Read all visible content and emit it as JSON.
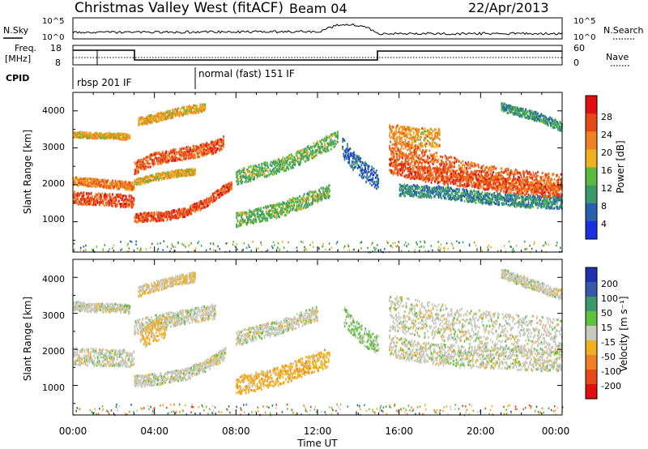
{
  "header": {
    "station": "Christmas Valley West (fitACF)",
    "beam": "Beam 04",
    "date": "22/Apr/2013"
  },
  "nsky": {
    "label": "N.Sky",
    "ticks_left": [
      "10^5",
      "10^0"
    ],
    "right_label": "N.Search",
    "ticks_right": [
      "10^5",
      "10^0"
    ]
  },
  "freq": {
    "label_line1": "Freq.",
    "label_line2": "[MHz]",
    "ticks_left": [
      "18",
      "8"
    ],
    "right_label": "Nave",
    "ticks_right": [
      "60",
      "0"
    ]
  },
  "cpid": {
    "label": "CPID",
    "segments": [
      {
        "text": "rbsp 201 IF",
        "start_hour": 0
      },
      {
        "text": "normal (fast) 151 IF",
        "start_hour": 6
      }
    ]
  },
  "time_axis": {
    "xlabel": "Time UT",
    "ticks": [
      "00:00",
      "04:00",
      "08:00",
      "12:00",
      "16:00",
      "20:00",
      "00:00"
    ]
  },
  "range_axis": {
    "ylabel": "Slant Range [km]",
    "ticks": [
      "1000",
      "2000",
      "3000",
      "4000"
    ]
  },
  "power_scale": {
    "title": "Power [dB]",
    "ticks": [
      "4",
      "8",
      "12",
      "16",
      "20",
      "24",
      "28"
    ],
    "colors": [
      "#1830e0",
      "#2860b0",
      "#3a9a6a",
      "#5aba40",
      "#f0b020",
      "#f08020",
      "#e84818",
      "#e01010"
    ]
  },
  "velocity_scale": {
    "title": "Velocity [m s⁻¹]",
    "ticks": [
      "200",
      "100",
      "50",
      "15",
      "-15",
      "-50",
      "-100",
      "-200"
    ],
    "colors": [
      "#2030b0",
      "#3858a8",
      "#3a9a6a",
      "#60c040",
      "#c8c8c0",
      "#f0b020",
      "#f08020",
      "#e84818",
      "#e01010"
    ]
  },
  "chart_data": [
    {
      "type": "heatmap",
      "title": "Power [dB]",
      "xlabel": "Time UT",
      "ylabel": "Slant Range [km]",
      "xlim": [
        0,
        24
      ],
      "ylim": [
        180,
        4500
      ],
      "cbar_range": [
        0,
        32
      ],
      "bands": [
        {
          "points": [
            [
              0,
              1650
            ],
            [
              1,
              1600
            ],
            [
              2,
              1580
            ],
            [
              3,
              1550
            ]
          ],
          "width": 170,
          "value": 26
        },
        {
          "points": [
            [
              0,
              2100
            ],
            [
              1,
              2050
            ],
            [
              2,
              2000
            ],
            [
              3,
              1950
            ]
          ],
          "width": 110,
          "value": 23
        },
        {
          "points": [
            [
              0,
              3350
            ],
            [
              1,
              3330
            ],
            [
              2,
              3320
            ],
            [
              2.8,
              3280
            ]
          ],
          "width": 80,
          "value": 19
        },
        {
          "points": [
            [
              3,
              1100
            ],
            [
              4.5,
              1150
            ],
            [
              5.5,
              1250
            ],
            [
              6.5,
              1500
            ],
            [
              7.2,
              1800
            ],
            [
              7.8,
              2000
            ]
          ],
          "width": 120,
          "value": 26
        },
        {
          "points": [
            [
              3,
              2450
            ],
            [
              4,
              2700
            ],
            [
              5,
              2800
            ],
            [
              6,
              2900
            ],
            [
              6.8,
              3000
            ],
            [
              7.4,
              3150
            ]
          ],
          "width": 170,
          "value": 25
        },
        {
          "points": [
            [
              3,
              2050
            ],
            [
              4,
              2200
            ],
            [
              5,
              2300
            ],
            [
              6,
              2350
            ]
          ],
          "width": 90,
          "value": 19
        },
        {
          "points": [
            [
              3.2,
              3700
            ],
            [
              4,
              3800
            ],
            [
              5,
              3950
            ],
            [
              6,
              4050
            ],
            [
              6.5,
              4100
            ]
          ],
          "width": 110,
          "value": 19
        },
        {
          "points": [
            [
              8,
              2200
            ],
            [
              9,
              2350
            ],
            [
              10,
              2500
            ],
            [
              11,
              2700
            ],
            [
              12,
              3000
            ],
            [
              13,
              3250
            ]
          ],
          "width": 200,
          "value": 13
        },
        {
          "points": [
            [
              8,
              1050
            ],
            [
              9,
              1150
            ],
            [
              10,
              1300
            ],
            [
              11,
              1500
            ],
            [
              12,
              1700
            ],
            [
              12.6,
              1850
            ]
          ],
          "width": 200,
          "value": 13
        },
        {
          "points": [
            [
              13.2,
              3000
            ],
            [
              13.8,
              2600
            ],
            [
              14.4,
              2300
            ],
            [
              15,
              2100
            ]
          ],
          "width": 260,
          "value": 6
        },
        {
          "points": [
            [
              15.5,
              2800
            ],
            [
              16,
              2900
            ],
            [
              17,
              2750
            ],
            [
              18,
              2550
            ],
            [
              19,
              2400
            ],
            [
              20,
              2250
            ],
            [
              21,
              2200
            ],
            [
              22,
              2100
            ],
            [
              23,
              2050
            ],
            [
              24,
              2000
            ]
          ],
          "width": 280,
          "value": 24
        },
        {
          "points": [
            [
              15.5,
              2500
            ],
            [
              17,
              2300
            ],
            [
              19,
              2150
            ],
            [
              21,
              2000
            ],
            [
              23,
              1850
            ],
            [
              24,
              1800
            ]
          ],
          "width": 200,
          "value": 25
        },
        {
          "points": [
            [
              16,
              1850
            ],
            [
              18,
              1800
            ],
            [
              20,
              1650
            ],
            [
              22,
              1550
            ],
            [
              24,
              1500
            ]
          ],
          "width": 160,
          "value": 9
        },
        {
          "points": [
            [
              21,
              4100
            ],
            [
              22,
              3950
            ],
            [
              23,
              3800
            ],
            [
              24,
              3550
            ]
          ],
          "width": 120,
          "value": 10
        },
        {
          "points": [
            [
              15.5,
              3400
            ],
            [
              16.5,
              3300
            ],
            [
              18,
              3250
            ]
          ],
          "width": 260,
          "value": 20
        }
      ]
    },
    {
      "type": "heatmap",
      "title": "Velocity [m s⁻¹]",
      "xlabel": "Time UT",
      "ylabel": "Slant Range [km]",
      "xlim": [
        0,
        24
      ],
      "ylim": [
        180,
        4500
      ],
      "cbar_range": [
        -200,
        200
      ],
      "bands": [
        {
          "points": [
            [
              0,
              1800
            ],
            [
              1,
              1780
            ],
            [
              2,
              1760
            ],
            [
              3,
              1740
            ]
          ],
          "width": 240,
          "value": 0
        },
        {
          "points": [
            [
              0,
              3200
            ],
            [
              1,
              3150
            ],
            [
              2,
              3150
            ],
            [
              2.8,
              3100
            ]
          ],
          "width": 120,
          "value": 0
        },
        {
          "points": [
            [
              3,
              1100
            ],
            [
              4.5,
              1200
            ],
            [
              5.5,
              1300
            ],
            [
              6.5,
              1550
            ],
            [
              7.5,
              1900
            ]
          ],
          "width": 160,
          "value": 0
        },
        {
          "points": [
            [
              3,
              2600
            ],
            [
              4,
              2750
            ],
            [
              5,
              2850
            ],
            [
              6,
              2950
            ],
            [
              7,
              3050
            ]
          ],
          "width": 200,
          "value": 0
        },
        {
          "points": [
            [
              3.3,
              2300
            ],
            [
              4,
              2500
            ],
            [
              4.6,
              2650
            ]
          ],
          "width": 300,
          "value": -40
        },
        {
          "points": [
            [
              3.2,
              3600
            ],
            [
              4,
              3750
            ],
            [
              5,
              3900
            ],
            [
              6,
              4000
            ]
          ],
          "width": 140,
          "value": -20
        },
        {
          "points": [
            [
              8,
              2300
            ],
            [
              9,
              2450
            ],
            [
              10,
              2600
            ],
            [
              11,
              2800
            ],
            [
              12,
              3000
            ]
          ],
          "width": 200,
          "value": 0
        },
        {
          "points": [
            [
              8,
              1000
            ],
            [
              9,
              1100
            ],
            [
              10,
              1250
            ],
            [
              11,
              1450
            ],
            [
              12,
              1650
            ],
            [
              12.6,
              1800
            ]
          ],
          "width": 260,
          "value": -45
        },
        {
          "points": [
            [
              13.3,
              2900
            ],
            [
              13.9,
              2500
            ],
            [
              14.5,
              2250
            ],
            [
              15,
              2100
            ]
          ],
          "width": 260,
          "value": 30
        },
        {
          "points": [
            [
              15.5,
              3000
            ],
            [
              17,
              2850
            ],
            [
              19,
              2650
            ],
            [
              21,
              2500
            ],
            [
              23,
              2400
            ],
            [
              24,
              2350
            ]
          ],
          "width": 500,
          "value": 0
        },
        {
          "points": [
            [
              15.5,
              2100
            ],
            [
              17,
              1900
            ],
            [
              19,
              1800
            ],
            [
              21,
              1750
            ],
            [
              23,
              1700
            ],
            [
              24,
              1700
            ]
          ],
          "width": 300,
          "value": 0
        },
        {
          "points": [
            [
              21,
              4100
            ],
            [
              22,
              3900
            ],
            [
              23,
              3700
            ],
            [
              24,
              3500
            ]
          ],
          "width": 140,
          "value": 0
        }
      ]
    }
  ]
}
